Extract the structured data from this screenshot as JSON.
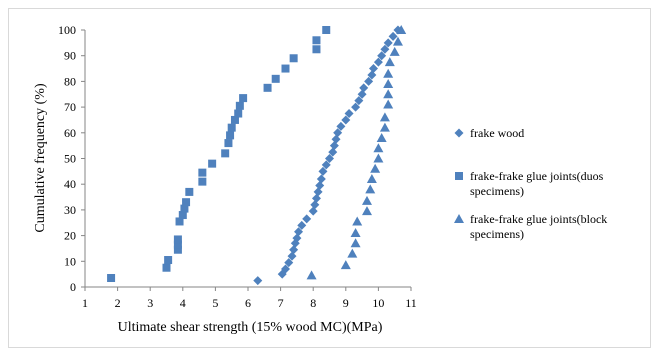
{
  "chart_data": {
    "type": "scatter",
    "xlabel": "Ultimate shear strength (15% wood MC)(MPa)",
    "ylabel": "Cumulative frequency (%)",
    "xlim": [
      1,
      11
    ],
    "ylim": [
      0,
      100
    ],
    "xticks": [
      "1",
      "2",
      "3",
      "4",
      "5",
      "6",
      "7",
      "8",
      "9",
      "10",
      "11"
    ],
    "yticks": [
      "0",
      "10",
      "20",
      "30",
      "40",
      "50",
      "60",
      "70",
      "80",
      "90",
      "100"
    ],
    "grid": false,
    "legend_position": "right",
    "series": [
      {
        "name": "frake wood",
        "marker": "diamond",
        "color": "#4f81bd",
        "points": [
          [
            6.3,
            2.5
          ],
          [
            7.05,
            5
          ],
          [
            7.15,
            7
          ],
          [
            7.25,
            9.5
          ],
          [
            7.35,
            12
          ],
          [
            7.4,
            14.5
          ],
          [
            7.45,
            17
          ],
          [
            7.5,
            19
          ],
          [
            7.55,
            21.5
          ],
          [
            7.65,
            24
          ],
          [
            7.8,
            26.5
          ],
          [
            8.0,
            29.5
          ],
          [
            8.05,
            32
          ],
          [
            8.1,
            34.5
          ],
          [
            8.15,
            37
          ],
          [
            8.2,
            39.5
          ],
          [
            8.25,
            42
          ],
          [
            8.3,
            45
          ],
          [
            8.4,
            47.5
          ],
          [
            8.5,
            50
          ],
          [
            8.6,
            52.5
          ],
          [
            8.65,
            55
          ],
          [
            8.7,
            57.5
          ],
          [
            8.75,
            60
          ],
          [
            8.85,
            62.5
          ],
          [
            9.0,
            65
          ],
          [
            9.1,
            67.5
          ],
          [
            9.3,
            70
          ],
          [
            9.4,
            72.5
          ],
          [
            9.5,
            75
          ],
          [
            9.55,
            77.5
          ],
          [
            9.7,
            80
          ],
          [
            9.8,
            82.5
          ],
          [
            9.85,
            85
          ],
          [
            10.0,
            87.5
          ],
          [
            10.1,
            90
          ],
          [
            10.2,
            92.5
          ],
          [
            10.3,
            95
          ],
          [
            10.45,
            97.5
          ],
          [
            10.6,
            100
          ]
        ]
      },
      {
        "name": "frake-frake glue joints(duos specimens)",
        "marker": "square",
        "color": "#4f81bd",
        "points": [
          [
            1.8,
            3.5
          ],
          [
            3.5,
            7.5
          ],
          [
            3.55,
            10.5
          ],
          [
            3.85,
            14.5
          ],
          [
            3.85,
            16.5
          ],
          [
            3.85,
            18.5
          ],
          [
            3.9,
            25.5
          ],
          [
            4.0,
            28
          ],
          [
            4.05,
            30.5
          ],
          [
            4.1,
            33
          ],
          [
            4.2,
            37
          ],
          [
            4.6,
            41
          ],
          [
            4.6,
            44.5
          ],
          [
            4.9,
            48
          ],
          [
            5.3,
            52
          ],
          [
            5.4,
            56
          ],
          [
            5.45,
            59
          ],
          [
            5.5,
            62
          ],
          [
            5.6,
            65
          ],
          [
            5.7,
            67.5
          ],
          [
            5.75,
            70.5
          ],
          [
            5.85,
            73.5
          ],
          [
            6.6,
            77.5
          ],
          [
            6.85,
            81
          ],
          [
            7.15,
            85
          ],
          [
            7.4,
            89
          ],
          [
            8.1,
            92.5
          ],
          [
            8.1,
            96
          ],
          [
            8.4,
            100
          ]
        ]
      },
      {
        "name": "frake-frake glue joints(block specimens)",
        "marker": "triangle",
        "color": "#4f81bd",
        "points": [
          [
            7.95,
            4.5
          ],
          [
            9.0,
            8.5
          ],
          [
            9.2,
            13
          ],
          [
            9.3,
            17
          ],
          [
            9.3,
            21
          ],
          [
            9.35,
            25.5
          ],
          [
            9.65,
            29.5
          ],
          [
            9.65,
            33.5
          ],
          [
            9.75,
            38
          ],
          [
            9.8,
            42
          ],
          [
            9.9,
            46
          ],
          [
            10.0,
            50
          ],
          [
            10.0,
            54
          ],
          [
            10.1,
            58
          ],
          [
            10.2,
            62
          ],
          [
            10.2,
            66
          ],
          [
            10.3,
            71
          ],
          [
            10.3,
            75
          ],
          [
            10.3,
            79
          ],
          [
            10.3,
            83
          ],
          [
            10.35,
            87.5
          ],
          [
            10.5,
            91.5
          ],
          [
            10.6,
            95.5
          ],
          [
            10.7,
            100
          ]
        ]
      }
    ]
  }
}
